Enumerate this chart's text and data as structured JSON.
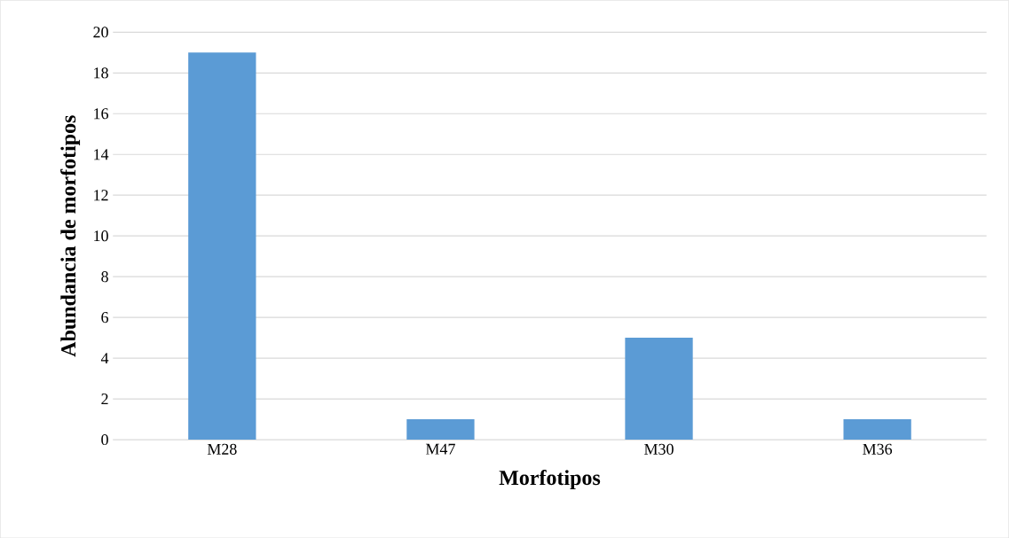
{
  "chart_data": {
    "type": "bar",
    "xlabel": "Morfotipos",
    "ylabel": "Abundancia de morfotipos",
    "categories": [
      "M28",
      "M47",
      "M30",
      "M36"
    ],
    "values": [
      19,
      1,
      5,
      1
    ],
    "color": "#5b9bd5",
    "ylim": [
      0,
      20
    ],
    "yticks": [
      0,
      2,
      4,
      6,
      8,
      10,
      12,
      14,
      16,
      18,
      20
    ],
    "grid": "y"
  }
}
